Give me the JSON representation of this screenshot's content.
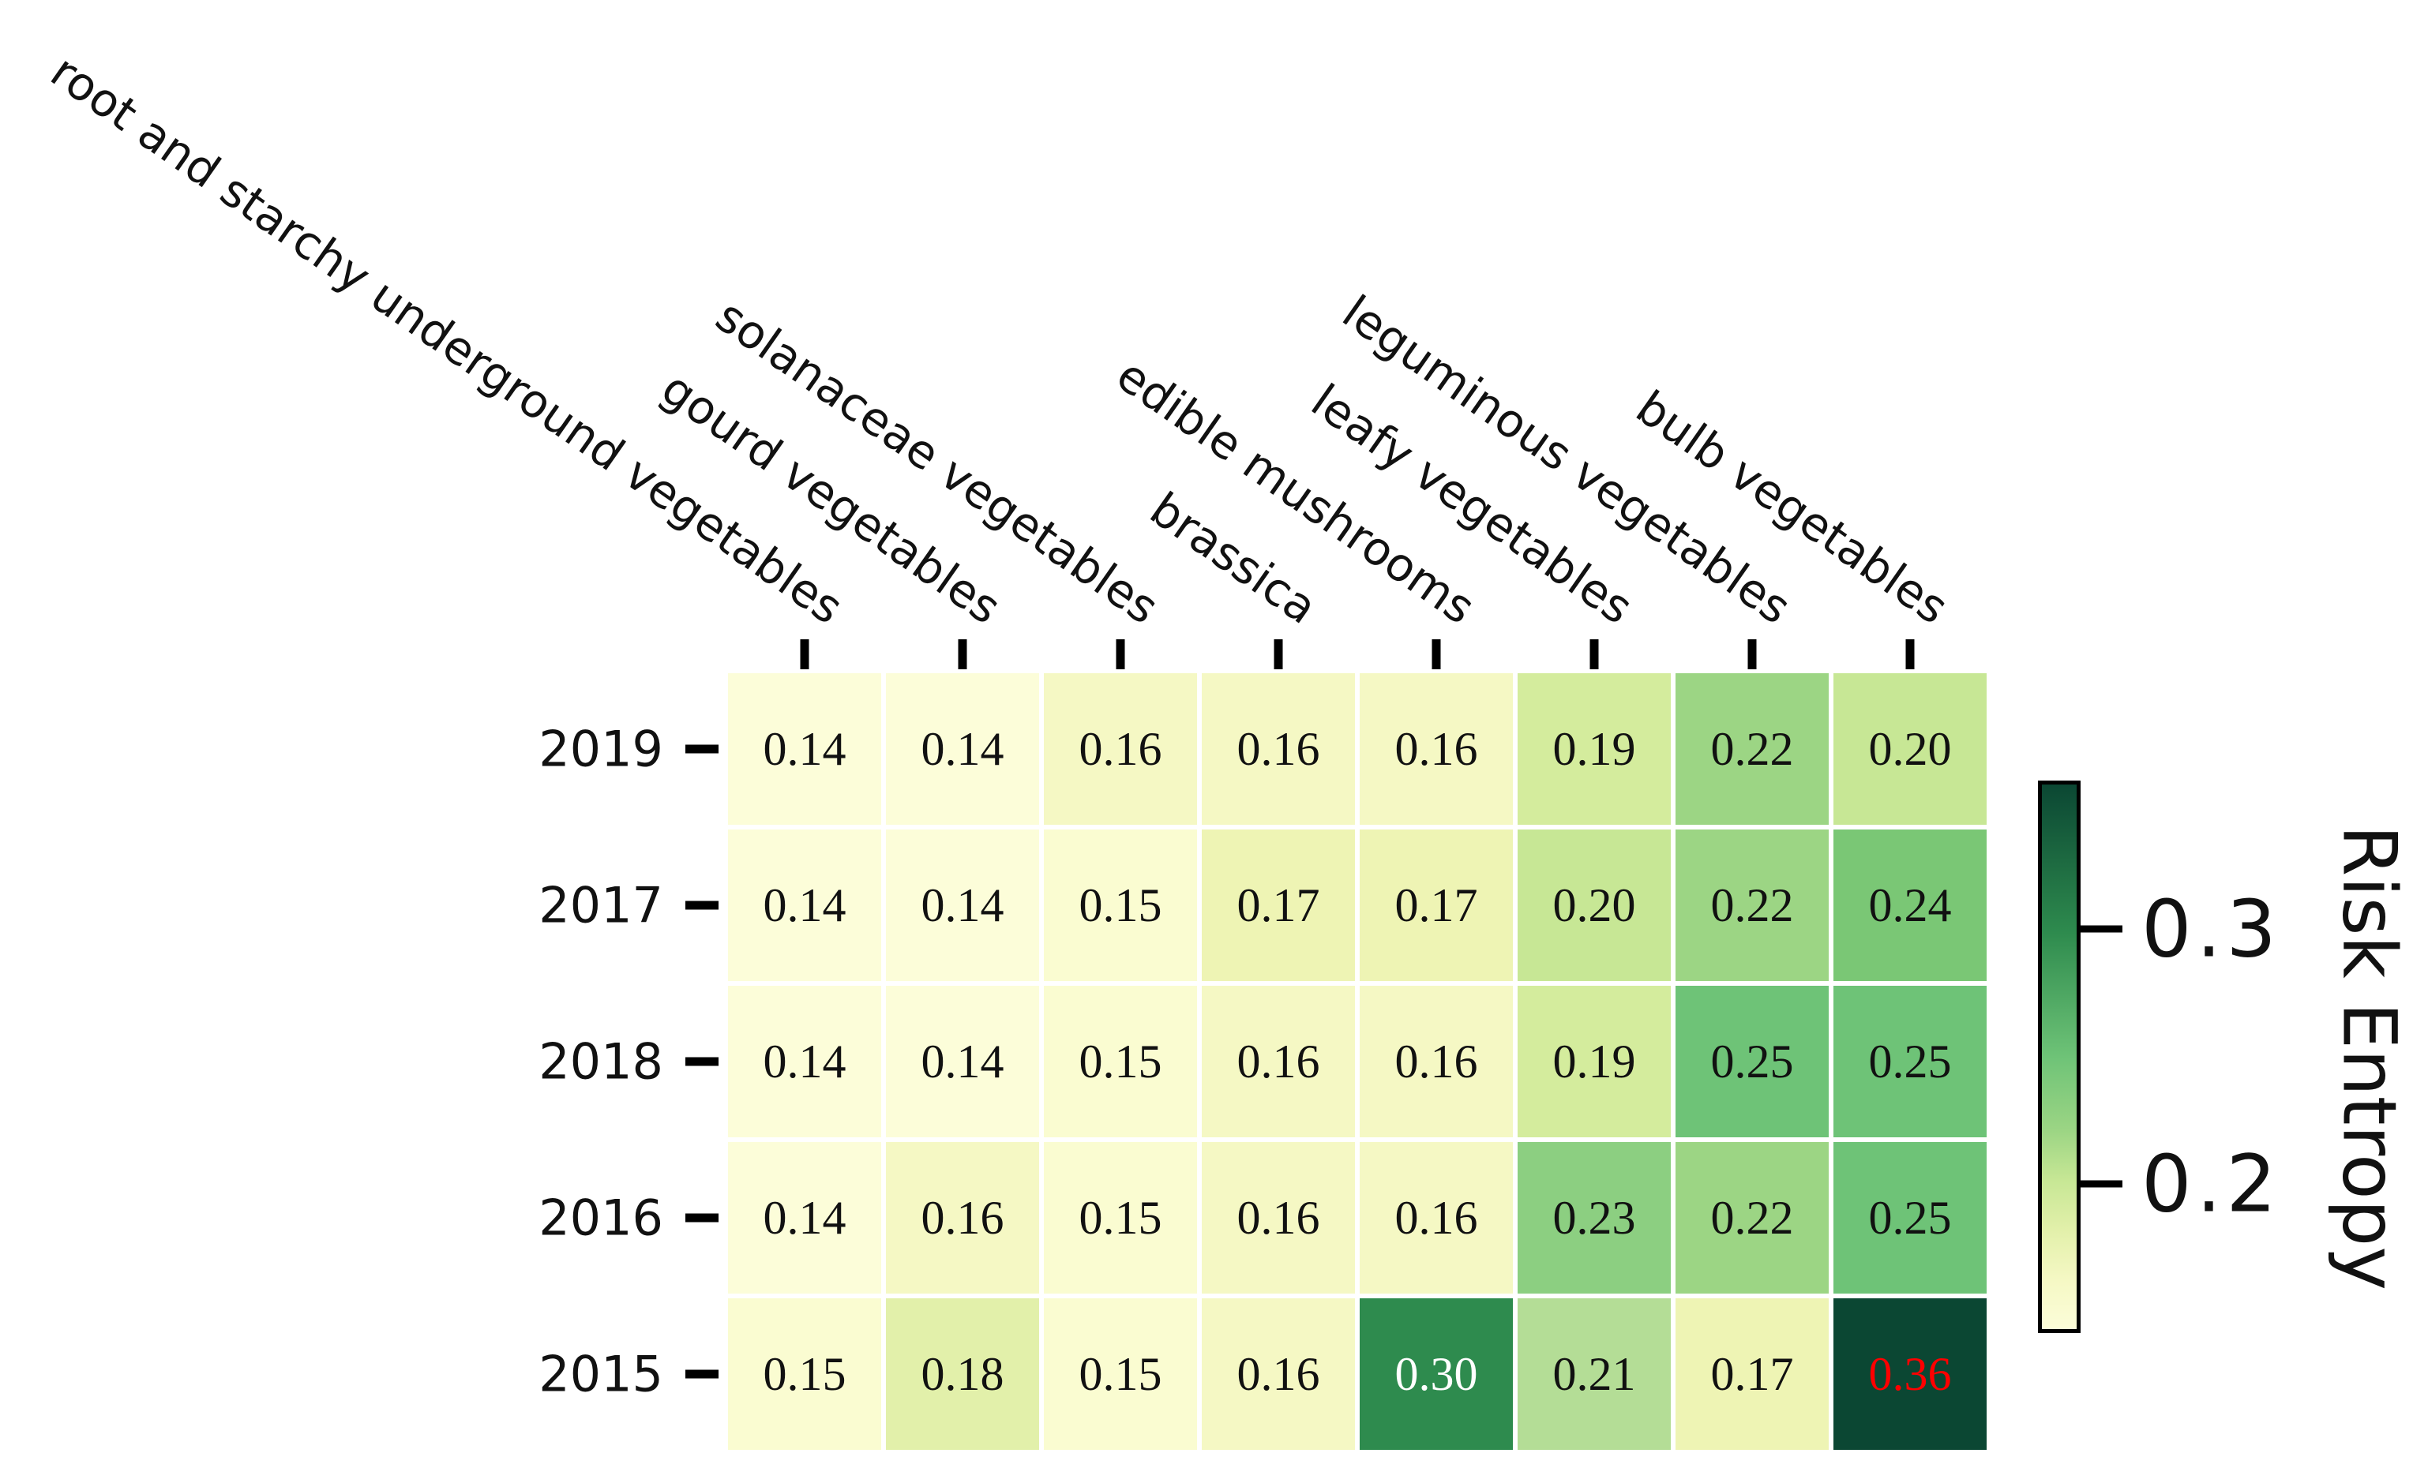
{
  "figure": {
    "background": "#ffffff",
    "text_color": "#111111",
    "tick_color": "#000000"
  },
  "chart_data": {
    "type": "heatmap",
    "title": "",
    "columns": [
      "root and starchy underground vegetables",
      "gourd vegetables",
      "solanaceae vegetables",
      "brassica",
      "edible mushrooms",
      "leafy vegetables",
      "leguminous vegetables",
      "bulb vegetables"
    ],
    "rows": [
      "2019",
      "2017",
      "2018",
      "2016",
      "2015"
    ],
    "values": [
      [
        0.14,
        0.14,
        0.16,
        0.16,
        0.16,
        0.19,
        0.22,
        0.2
      ],
      [
        0.14,
        0.14,
        0.15,
        0.17,
        0.17,
        0.2,
        0.22,
        0.24
      ],
      [
        0.14,
        0.14,
        0.15,
        0.16,
        0.16,
        0.19,
        0.25,
        0.25
      ],
      [
        0.14,
        0.16,
        0.15,
        0.16,
        0.16,
        0.23,
        0.22,
        0.25
      ],
      [
        0.15,
        0.18,
        0.15,
        0.16,
        0.3,
        0.21,
        0.17,
        0.36
      ]
    ],
    "value_decimals": 2,
    "cell_text_color_default": "#111111",
    "cell_text_overrides": {
      "4,4": "#ffffff",
      "4,7": "#ff0000"
    },
    "palette": {
      "0.14": "#fcfdd9",
      "0.15": "#fafcd1",
      "0.16": "#f5f8c4",
      "0.17": "#eef4b4",
      "0.18": "#e2f0aa",
      "0.19": "#d4ec9d",
      "0.20": "#c7e795",
      "0.21": "#b4dd96",
      "0.22": "#9cd584",
      "0.23": "#8ccf81",
      "0.24": "#7ac775",
      "0.25": "#6ec377",
      "0.30": "#2e8b4e",
      "0.36": "#0b4733"
    },
    "colorbar": {
      "label": "Risk Entropy",
      "vmin": 0.14,
      "vmax": 0.36,
      "ticks": [
        {
          "label": "0.3",
          "frac_from_top": 0.273
        },
        {
          "label": "0.2",
          "frac_from_top": 0.74
        }
      ],
      "gradient_stops": [
        {
          "frac": 0.0,
          "color": "#0b4733"
        },
        {
          "frac": 0.273,
          "color": "#2e8b4e"
        },
        {
          "frac": 0.5,
          "color": "#6ec377"
        },
        {
          "frac": 0.636,
          "color": "#9cd584"
        },
        {
          "frac": 0.727,
          "color": "#c7e795"
        },
        {
          "frac": 0.818,
          "color": "#e2f0aa"
        },
        {
          "frac": 0.909,
          "color": "#f5f8c4"
        },
        {
          "frac": 1.0,
          "color": "#fcfdd9"
        }
      ]
    },
    "legend_position": "right",
    "grid": false
  }
}
